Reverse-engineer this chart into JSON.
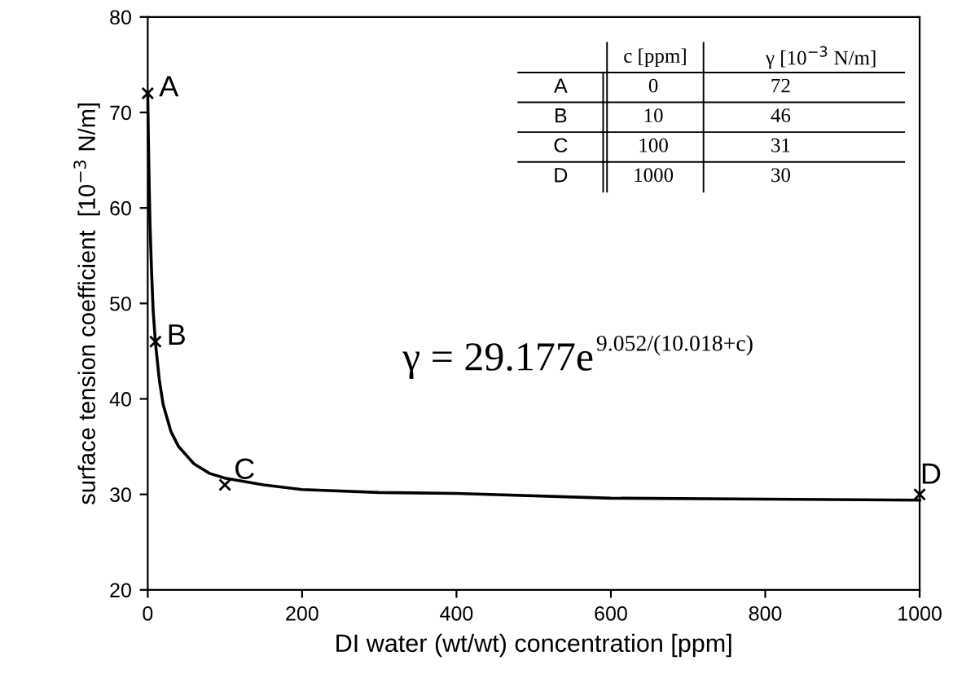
{
  "chart_data": {
    "type": "line",
    "xlabel": "DI water (wt/wt) concentration [ppm]",
    "ylabel": "surface tension coefficient  [10$^{−3}$ N/m]",
    "xlim": [
      0,
      1000
    ],
    "ylim": [
      20,
      80
    ],
    "xticks": [
      0,
      200,
      400,
      600,
      800,
      1000
    ],
    "yticks": [
      20,
      30,
      40,
      50,
      60,
      70,
      80
    ],
    "grid": false,
    "legend": false,
    "series": [
      {
        "type": "line",
        "color": "#000000",
        "marker": "none",
        "x": [
          0,
          1,
          2,
          3,
          5,
          7,
          10,
          15,
          20,
          30,
          40,
          60,
          80,
          100,
          150,
          200,
          300,
          400,
          600,
          800,
          1000
        ],
        "values": [
          72,
          66.6,
          62,
          58.2,
          53.3,
          49.3,
          45.9,
          42,
          39.4,
          36.6,
          35,
          33.2,
          32.2,
          31.7,
          31,
          30.5,
          30.2,
          30.1,
          29.6,
          29.5,
          29.4
        ]
      },
      {
        "type": "scatter",
        "color": "#000000",
        "marker": "cross",
        "x": [
          0,
          10,
          100,
          1000
        ],
        "values": [
          72,
          46,
          31,
          30
        ]
      }
    ],
    "annotations": [
      {
        "text": "A",
        "x": 0,
        "y": 72
      },
      {
        "text": "B",
        "x": 10,
        "y": 46
      },
      {
        "text": "C",
        "x": 100,
        "y": 31
      },
      {
        "text": "D",
        "x": 1000,
        "y": 30
      },
      "γ = 29.177e$^{9.052/(10.018+c)}$",
      "c [ppm]",
      "γ [10$^{−3}$ N/m]",
      "A",
      "0",
      "72",
      "B",
      "10",
      "46",
      "C",
      "100",
      "31",
      "D",
      "1000",
      "30"
    ]
  }
}
